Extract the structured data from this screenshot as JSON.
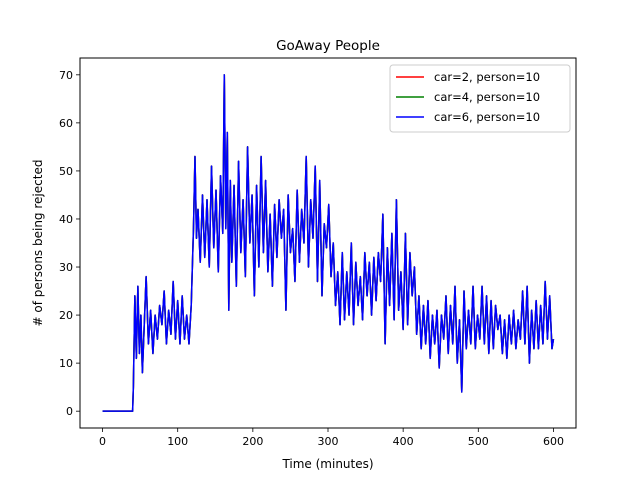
{
  "chart_data": {
    "type": "line",
    "title": "GoAway People",
    "xlabel": "Time (minutes)",
    "ylabel": "# of persons being rejected",
    "xlim": [
      -30,
      630
    ],
    "ylim": [
      -3.5,
      73.5
    ],
    "xticks": [
      0,
      100,
      200,
      300,
      400,
      500,
      600
    ],
    "yticks": [
      0,
      10,
      20,
      30,
      40,
      50,
      60,
      70
    ],
    "grid": false,
    "legend_position": "top-right",
    "series": [
      {
        "name": "car=2, person=10",
        "color": "#ff0000",
        "x": [
          0,
          40,
          41,
          43,
          45,
          47,
          49,
          51,
          53,
          55,
          58,
          61,
          64,
          67,
          70,
          73,
          76,
          79,
          82,
          85,
          88,
          91,
          94,
          97,
          100,
          103,
          106,
          109,
          112,
          115,
          118,
          121,
          123,
          125,
          127,
          130,
          133,
          136,
          139,
          142,
          145,
          148,
          151,
          154,
          157,
          160,
          162,
          164,
          166,
          168,
          170,
          172,
          175,
          178,
          181,
          184,
          187,
          190,
          193,
          196,
          199,
          202,
          205,
          208,
          211,
          214,
          217,
          220,
          223,
          226,
          229,
          232,
          235,
          238,
          241,
          244,
          247,
          250,
          253,
          256,
          259,
          262,
          265,
          268,
          271,
          274,
          277,
          280,
          283,
          286,
          289,
          292,
          295,
          298,
          301,
          304,
          307,
          310,
          313,
          316,
          319,
          322,
          325,
          328,
          331,
          334,
          337,
          340,
          343,
          346,
          349,
          352,
          355,
          358,
          361,
          364,
          367,
          370,
          373,
          376,
          379,
          382,
          385,
          388,
          391,
          394,
          397,
          400,
          403,
          406,
          409,
          412,
          415,
          418,
          421,
          424,
          427,
          430,
          433,
          436,
          439,
          442,
          445,
          448,
          451,
          454,
          457,
          460,
          463,
          466,
          469,
          472,
          475,
          478,
          481,
          484,
          487,
          490,
          493,
          496,
          499,
          502,
          505,
          508,
          511,
          514,
          517,
          520,
          523,
          526,
          529,
          532,
          535,
          538,
          541,
          544,
          547,
          550,
          553,
          556,
          559,
          562,
          565,
          568,
          571,
          574,
          577,
          580,
          583,
          586,
          589,
          592,
          595,
          598,
          600
        ],
        "y": [
          0,
          0,
          5,
          24,
          11,
          26,
          12,
          20,
          8,
          16,
          28,
          14,
          21,
          12,
          20,
          15,
          22,
          18,
          25,
          14,
          21,
          16,
          27,
          15,
          23,
          14,
          24,
          15,
          20,
          14,
          22,
          38,
          53,
          36,
          42,
          31,
          45,
          32,
          44,
          30,
          51,
          34,
          46,
          29,
          49,
          37,
          70,
          38,
          58,
          21,
          48,
          31,
          47,
          26,
          52,
          33,
          44,
          28,
          55,
          35,
          45,
          24,
          47,
          30,
          53,
          33,
          48,
          29,
          41,
          26,
          43,
          32,
          44,
          36,
          42,
          21,
          45,
          33,
          38,
          27,
          46,
          31,
          42,
          35,
          53,
          30,
          44,
          36,
          51,
          27,
          48,
          24,
          39,
          34,
          43,
          28,
          35,
          22,
          29,
          18,
          33,
          19,
          29,
          20,
          35,
          18,
          31,
          22,
          28,
          19,
          33,
          24,
          31,
          20,
          32,
          23,
          33,
          27,
          41,
          14,
          34,
          22,
          37,
          19,
          44,
          21,
          29,
          17,
          37,
          18,
          33,
          24,
          30,
          16,
          24,
          13,
          22,
          14,
          23,
          11,
          20,
          14,
          21,
          9,
          20,
          15,
          24,
          12,
          22,
          14,
          26,
          10,
          19,
          4,
          25,
          13,
          21,
          14,
          26,
          13,
          20,
          15,
          26,
          14,
          24,
          12,
          23,
          13,
          22,
          17,
          20,
          12,
          19,
          11,
          20,
          14,
          21,
          13,
          19,
          15,
          25,
          14,
          26,
          10,
          21,
          13,
          23,
          13,
          22,
          14,
          27,
          15,
          24,
          13,
          15
        ]
      },
      {
        "name": "car=4, person=10",
        "color": "#008000",
        "x": [
          0,
          40,
          41,
          43,
          45,
          47,
          49,
          51,
          53,
          55,
          58,
          61,
          64,
          67,
          70,
          73,
          76,
          79,
          82,
          85,
          88,
          91,
          94,
          97,
          100,
          103,
          106,
          109,
          112,
          115,
          118,
          121,
          123,
          125,
          127,
          130,
          133,
          136,
          139,
          142,
          145,
          148,
          151,
          154,
          157,
          160,
          162,
          164,
          166,
          168,
          170,
          172,
          175,
          178,
          181,
          184,
          187,
          190,
          193,
          196,
          199,
          202,
          205,
          208,
          211,
          214,
          217,
          220,
          223,
          226,
          229,
          232,
          235,
          238,
          241,
          244,
          247,
          250,
          253,
          256,
          259,
          262,
          265,
          268,
          271,
          274,
          277,
          280,
          283,
          286,
          289,
          292,
          295,
          298,
          301,
          304,
          307,
          310,
          313,
          316,
          319,
          322,
          325,
          328,
          331,
          334,
          337,
          340,
          343,
          346,
          349,
          352,
          355,
          358,
          361,
          364,
          367,
          370,
          373,
          376,
          379,
          382,
          385,
          388,
          391,
          394,
          397,
          400,
          403,
          406,
          409,
          412,
          415,
          418,
          421,
          424,
          427,
          430,
          433,
          436,
          439,
          442,
          445,
          448,
          451,
          454,
          457,
          460,
          463,
          466,
          469,
          472,
          475,
          478,
          481,
          484,
          487,
          490,
          493,
          496,
          499,
          502,
          505,
          508,
          511,
          514,
          517,
          520,
          523,
          526,
          529,
          532,
          535,
          538,
          541,
          544,
          547,
          550,
          553,
          556,
          559,
          562,
          565,
          568,
          571,
          574,
          577,
          580,
          583,
          586,
          589,
          592,
          595,
          598,
          600
        ],
        "y": [
          0,
          0,
          5,
          24,
          11,
          26,
          12,
          20,
          8,
          16,
          28,
          14,
          21,
          12,
          20,
          15,
          22,
          18,
          25,
          14,
          21,
          16,
          27,
          15,
          23,
          14,
          24,
          15,
          20,
          14,
          22,
          38,
          53,
          36,
          42,
          31,
          45,
          32,
          44,
          30,
          51,
          34,
          46,
          29,
          49,
          37,
          70,
          38,
          58,
          21,
          48,
          31,
          47,
          26,
          52,
          33,
          44,
          28,
          55,
          35,
          45,
          24,
          47,
          30,
          53,
          33,
          48,
          29,
          41,
          26,
          43,
          32,
          44,
          36,
          42,
          21,
          45,
          33,
          38,
          27,
          46,
          31,
          42,
          35,
          53,
          30,
          44,
          36,
          51,
          27,
          48,
          24,
          39,
          34,
          43,
          28,
          35,
          22,
          29,
          18,
          33,
          19,
          29,
          20,
          35,
          18,
          31,
          22,
          28,
          19,
          33,
          24,
          31,
          20,
          32,
          23,
          33,
          27,
          41,
          14,
          34,
          22,
          37,
          19,
          44,
          21,
          29,
          17,
          37,
          18,
          33,
          24,
          30,
          16,
          24,
          13,
          22,
          14,
          23,
          11,
          20,
          14,
          21,
          9,
          20,
          15,
          24,
          12,
          22,
          14,
          26,
          10,
          19,
          4,
          25,
          13,
          21,
          14,
          26,
          13,
          20,
          15,
          26,
          14,
          24,
          12,
          23,
          13,
          22,
          17,
          20,
          12,
          19,
          11,
          20,
          14,
          21,
          13,
          19,
          15,
          25,
          14,
          26,
          10,
          21,
          13,
          23,
          13,
          22,
          14,
          27,
          15,
          24,
          13,
          15
        ]
      },
      {
        "name": "car=6, person=10",
        "color": "#0000ff",
        "x": [
          0,
          40,
          41,
          43,
          45,
          47,
          49,
          51,
          53,
          55,
          58,
          61,
          64,
          67,
          70,
          73,
          76,
          79,
          82,
          85,
          88,
          91,
          94,
          97,
          100,
          103,
          106,
          109,
          112,
          115,
          118,
          121,
          123,
          125,
          127,
          130,
          133,
          136,
          139,
          142,
          145,
          148,
          151,
          154,
          157,
          160,
          162,
          164,
          166,
          168,
          170,
          172,
          175,
          178,
          181,
          184,
          187,
          190,
          193,
          196,
          199,
          202,
          205,
          208,
          211,
          214,
          217,
          220,
          223,
          226,
          229,
          232,
          235,
          238,
          241,
          244,
          247,
          250,
          253,
          256,
          259,
          262,
          265,
          268,
          271,
          274,
          277,
          280,
          283,
          286,
          289,
          292,
          295,
          298,
          301,
          304,
          307,
          310,
          313,
          316,
          319,
          322,
          325,
          328,
          331,
          334,
          337,
          340,
          343,
          346,
          349,
          352,
          355,
          358,
          361,
          364,
          367,
          370,
          373,
          376,
          379,
          382,
          385,
          388,
          391,
          394,
          397,
          400,
          403,
          406,
          409,
          412,
          415,
          418,
          421,
          424,
          427,
          430,
          433,
          436,
          439,
          442,
          445,
          448,
          451,
          454,
          457,
          460,
          463,
          466,
          469,
          472,
          475,
          478,
          481,
          484,
          487,
          490,
          493,
          496,
          499,
          502,
          505,
          508,
          511,
          514,
          517,
          520,
          523,
          526,
          529,
          532,
          535,
          538,
          541,
          544,
          547,
          550,
          553,
          556,
          559,
          562,
          565,
          568,
          571,
          574,
          577,
          580,
          583,
          586,
          589,
          592,
          595,
          598,
          600
        ],
        "y": [
          0,
          0,
          5,
          24,
          11,
          26,
          12,
          20,
          8,
          16,
          28,
          14,
          21,
          12,
          20,
          15,
          22,
          18,
          25,
          14,
          21,
          16,
          27,
          15,
          23,
          14,
          24,
          15,
          20,
          14,
          22,
          38,
          53,
          36,
          42,
          31,
          45,
          32,
          44,
          30,
          51,
          34,
          46,
          29,
          49,
          37,
          70,
          38,
          58,
          21,
          48,
          31,
          47,
          26,
          52,
          33,
          44,
          28,
          55,
          35,
          45,
          24,
          47,
          30,
          53,
          33,
          48,
          29,
          41,
          26,
          43,
          32,
          44,
          36,
          42,
          21,
          45,
          33,
          38,
          27,
          46,
          31,
          42,
          35,
          53,
          30,
          44,
          36,
          51,
          27,
          48,
          24,
          39,
          34,
          43,
          28,
          35,
          22,
          29,
          18,
          33,
          19,
          29,
          20,
          35,
          18,
          31,
          22,
          28,
          19,
          33,
          24,
          31,
          20,
          32,
          23,
          33,
          27,
          41,
          14,
          34,
          22,
          37,
          19,
          44,
          21,
          29,
          17,
          37,
          18,
          33,
          24,
          30,
          16,
          24,
          13,
          22,
          14,
          23,
          11,
          20,
          14,
          21,
          9,
          20,
          15,
          24,
          12,
          22,
          14,
          26,
          10,
          19,
          4,
          25,
          13,
          21,
          14,
          26,
          13,
          20,
          15,
          26,
          14,
          24,
          12,
          23,
          13,
          22,
          17,
          20,
          12,
          19,
          11,
          20,
          14,
          21,
          13,
          19,
          15,
          25,
          14,
          26,
          10,
          21,
          13,
          23,
          13,
          22,
          14,
          27,
          15,
          24,
          13,
          15
        ]
      }
    ]
  }
}
